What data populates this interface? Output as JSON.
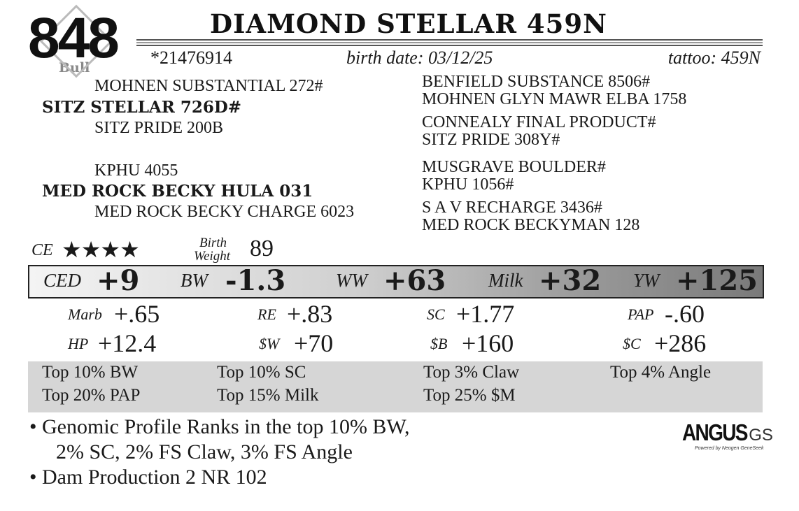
{
  "lot": {
    "number": "848",
    "sex": "Bull"
  },
  "animal": {
    "name": "DIAMOND STELLAR 459N",
    "registration": "*21476914",
    "birth_date": "birth date:  03/12/25",
    "tattoo": "tattoo: 459N"
  },
  "pedigree": {
    "sire_sire": "MOHNEN SUBSTANTIAL 272#",
    "sire": "SITZ STELLAR 726D#",
    "sire_dam": "SITZ PRIDE 200B",
    "dam_sire": "KPHU 4055",
    "dam": "MED ROCK BECKY HULA 031",
    "dam_dam": "MED ROCK BECKY CHARGE 6023",
    "right": [
      "BENFIELD SUBSTANCE 8506#",
      "MOHNEN GLYN MAWR ELBA 1758",
      "CONNEALY FINAL PRODUCT#",
      "SITZ PRIDE 308Y#",
      "MUSGRAVE BOULDER#",
      "KPHU 1056#",
      "S A V RECHARGE 3436#",
      "MED ROCK BECKYMAN 128"
    ]
  },
  "ce": {
    "label": "CE",
    "stars": "★★★★",
    "rating": 4,
    "bw_label_1": "Birth",
    "bw_label_2": "Weight",
    "birth_weight": "89"
  },
  "epds": [
    {
      "label": "CED",
      "value": "+9"
    },
    {
      "label": "BW",
      "value": "-1.3"
    },
    {
      "label": "WW",
      "value": "+63"
    },
    {
      "label": "Milk",
      "value": "+32"
    },
    {
      "label": "YW",
      "value": "+125"
    }
  ],
  "stats": [
    {
      "label": "Marb",
      "value": "+.65"
    },
    {
      "label": "RE",
      "value": "+.83"
    },
    {
      "label": "SC",
      "value": "+1.77"
    },
    {
      "label": "PAP",
      "value": "-.60"
    },
    {
      "label": "HP",
      "value": "+12.4"
    },
    {
      "label": "$W",
      "value": "+70"
    },
    {
      "label": "$B",
      "value": "+160"
    },
    {
      "label": "$C",
      "value": "+286"
    }
  ],
  "ranks": [
    "Top 10% BW",
    "Top 10% SC",
    "Top 3% Claw",
    "Top 4% Angle",
    "Top 20% PAP",
    "Top 15% Milk",
    "Top 25% $M"
  ],
  "notes": [
    "• Genomic Profile Ranks in the top 10% BW,",
    "2% SC, 2% FS Claw, 3% FS Angle",
    "• Dam Production 2 NR 102"
  ],
  "logo": {
    "main": "ANGUS",
    "suffix": "GS",
    "tagline": "Powered by Neogen GeneSeek"
  }
}
